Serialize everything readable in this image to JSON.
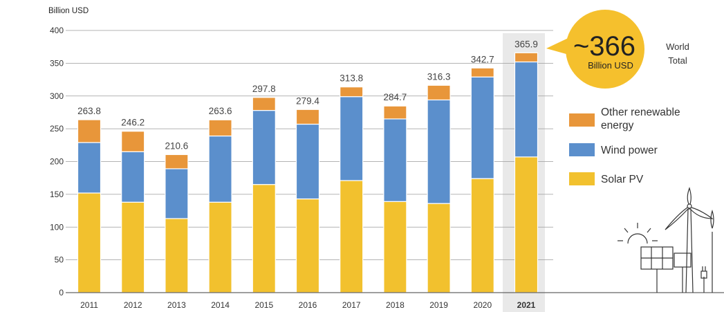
{
  "chart_data": {
    "type": "bar",
    "stacked": true,
    "ylabel": "Billion USD",
    "ylim": [
      0,
      400
    ],
    "yticks": [
      0,
      50,
      100,
      150,
      200,
      250,
      300,
      350,
      400
    ],
    "grid": true,
    "categories": [
      "2011",
      "2012",
      "2013",
      "2014",
      "2015",
      "2016",
      "2017",
      "2018",
      "2019",
      "2020",
      "2021"
    ],
    "highlight_category": "2021",
    "series": [
      {
        "name": "Solar PV",
        "color": "#f2c12e",
        "values": [
          152,
          138,
          113,
          138,
          165,
          143,
          171,
          139,
          136,
          174,
          207
        ]
      },
      {
        "name": "Wind power",
        "color": "#5b8fcc",
        "values": [
          77,
          77,
          76,
          101,
          113,
          114,
          128,
          126,
          158,
          155,
          145
        ]
      },
      {
        "name": "Other renewable energy",
        "color": "#e8963a",
        "values": [
          34.8,
          31.2,
          21.6,
          24.6,
          19.8,
          22.4,
          14.8,
          19.7,
          22.3,
          13.7,
          13.9
        ]
      }
    ],
    "totals": [
      263.8,
      246.2,
      210.6,
      263.6,
      297.8,
      279.4,
      313.8,
      284.7,
      316.3,
      342.7,
      365.9
    ],
    "total_labels": [
      "263.8",
      "246.2",
      "210.6",
      "263.6",
      "297.8",
      "279.4",
      "313.8",
      "284.7",
      "316.3",
      "342.7",
      "365.9"
    ],
    "legend_position": "right"
  },
  "callout": {
    "big": "~366",
    "small": "Billion USD",
    "world_line1": "World",
    "world_line2": "Total",
    "color": "#f5c02d"
  },
  "legend": [
    {
      "line1": "Other renewable",
      "line2": "energy",
      "icon": "orange-swatch"
    },
    {
      "line1": "Wind power",
      "line2": "",
      "icon": "blue-swatch"
    },
    {
      "line1": "Solar PV",
      "line2": "",
      "icon": "yellow-swatch"
    }
  ],
  "decoration": {
    "icon": "solar-wind-plug-icon"
  }
}
